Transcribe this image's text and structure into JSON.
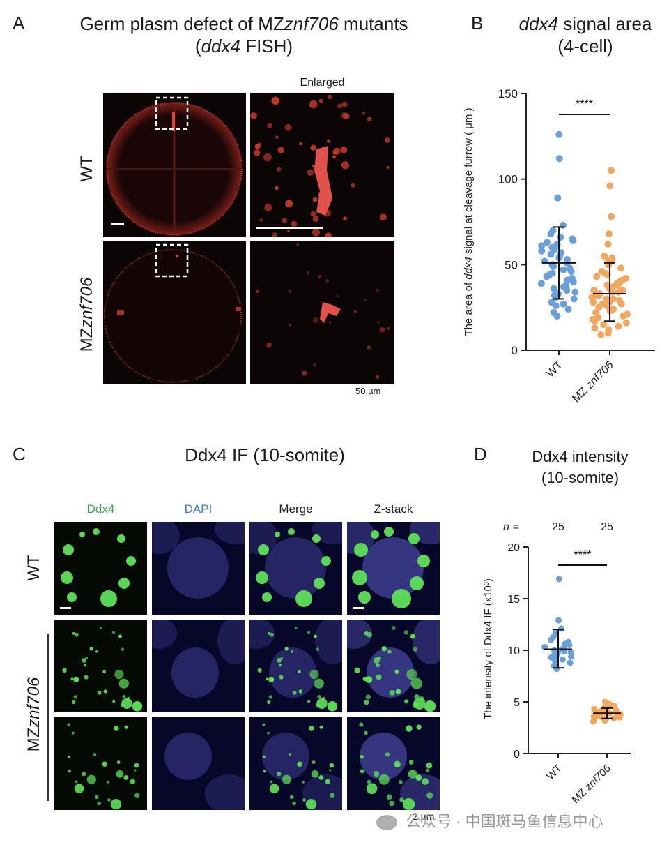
{
  "panelA": {
    "letter": "A",
    "title_line1_pre": "Germ plasm defect of MZ",
    "title_line1_ital": "znf706",
    "title_line1_post": " mutants",
    "title_line2_pre": "(",
    "title_line2_ital": "ddx4",
    "title_line2_post": " FISH)",
    "enlarged_label": "Enlarged",
    "row_wt": "WT",
    "row_mut_pre": "MZ",
    "row_mut_ital": "znf706",
    "scale_label": "50 µm"
  },
  "panelB": {
    "letter": "B",
    "title_line1_ital": "ddx4",
    "title_line1_post": " signal area",
    "title_line2": "(4-cell)"
  },
  "panelC": {
    "letter": "C",
    "title": "Ddx4 IF (10-somite)",
    "col_ddx4": "Ddx4",
    "col_dapi": "DAPI",
    "col_merge": "Merge",
    "col_zstack": "Z-stack",
    "row_wt": "WT",
    "row_mut_pre": "MZ",
    "row_mut_ital": "znf706",
    "scale_label": "2 µm"
  },
  "panelD": {
    "letter": "D",
    "title_line1": "Ddx4 intensity",
    "title_line2": "(10-somite)"
  },
  "watermark": "公众号 · 中国斑马鱼信息中心",
  "colors": {
    "wt": "#6a9fd8",
    "mut": "#f0a860",
    "red": "#e0413a",
    "green": "#4dd04a",
    "blue": "#5050c0",
    "green_label": "#3aa84a",
    "blue_label": "#3b7fc4"
  },
  "chart_data": [
    {
      "type": "scatter",
      "title": "ddx4 signal area (4-cell)",
      "ylabel_pre": "The area of ",
      "ylabel_ital": "ddx4",
      "ylabel_post": " signal at cleavage furrow ( μm )",
      "categories": [
        "WT",
        "MZznf706"
      ],
      "cat_labels": [
        "WT",
        "MZ znf706"
      ],
      "ylim": [
        0,
        150
      ],
      "yticks": [
        0,
        50,
        100,
        150
      ],
      "significance": "****",
      "series": [
        {
          "name": "WT",
          "mean": 51,
          "sd_low": 30,
          "sd_high": 72,
          "values": [
            126,
            112,
            89,
            73,
            70,
            68,
            66,
            65,
            64,
            63,
            62,
            61,
            60,
            59,
            58,
            57,
            56,
            55,
            54,
            53,
            52,
            51,
            50,
            49,
            48,
            47,
            46,
            45,
            44,
            43,
            42,
            41,
            40,
            39,
            38,
            37,
            36,
            35,
            34,
            33,
            32,
            31,
            30,
            28,
            27,
            26,
            24,
            22,
            20
          ]
        },
        {
          "name": "MZznf706",
          "mean": 33,
          "sd_low": 17,
          "sd_high": 51,
          "values": [
            105,
            96,
            78,
            68,
            62,
            55,
            54,
            53,
            52,
            50,
            48,
            46,
            45,
            44,
            43,
            42,
            41,
            40,
            40,
            39,
            38,
            38,
            37,
            36,
            36,
            35,
            35,
            34,
            34,
            33,
            33,
            32,
            32,
            31,
            31,
            30,
            30,
            29,
            29,
            28,
            28,
            27,
            27,
            26,
            25,
            24,
            23,
            22,
            21,
            20,
            19,
            18,
            17,
            16,
            15,
            14,
            13,
            12,
            10,
            9
          ]
        }
      ]
    },
    {
      "type": "scatter",
      "title": "Ddx4 intensity (10-somite)",
      "ylabel": "The intensity of Ddx4 IF (x10³)",
      "categories": [
        "WT",
        "MZznf706"
      ],
      "cat_labels": [
        "WT",
        "MZ znf706"
      ],
      "n_label": "n =",
      "n_values": [
        "25",
        "25"
      ],
      "ylim": [
        0,
        20
      ],
      "yticks": [
        0,
        5,
        10,
        15,
        20
      ],
      "significance": "****",
      "series": [
        {
          "name": "WT",
          "mean": 10.1,
          "sd_low": 8.3,
          "sd_high": 12.0,
          "values": [
            16.9,
            12.9,
            12.1,
            11.6,
            11.3,
            11.0,
            10.8,
            10.6,
            10.5,
            10.3,
            10.2,
            10.1,
            10.0,
            9.9,
            9.8,
            9.7,
            9.6,
            9.5,
            9.4,
            9.3,
            9.1,
            9.0,
            8.8,
            8.5,
            8.2
          ]
        },
        {
          "name": "MZznf706",
          "mean": 3.9,
          "sd_low": 3.4,
          "sd_high": 4.4,
          "values": [
            5.0,
            4.8,
            4.6,
            4.5,
            4.4,
            4.3,
            4.2,
            4.1,
            4.0,
            4.0,
            3.9,
            3.9,
            3.8,
            3.8,
            3.7,
            3.7,
            3.6,
            3.6,
            3.5,
            3.5,
            3.4,
            3.3,
            3.3,
            3.2,
            3.1
          ]
        }
      ]
    }
  ]
}
